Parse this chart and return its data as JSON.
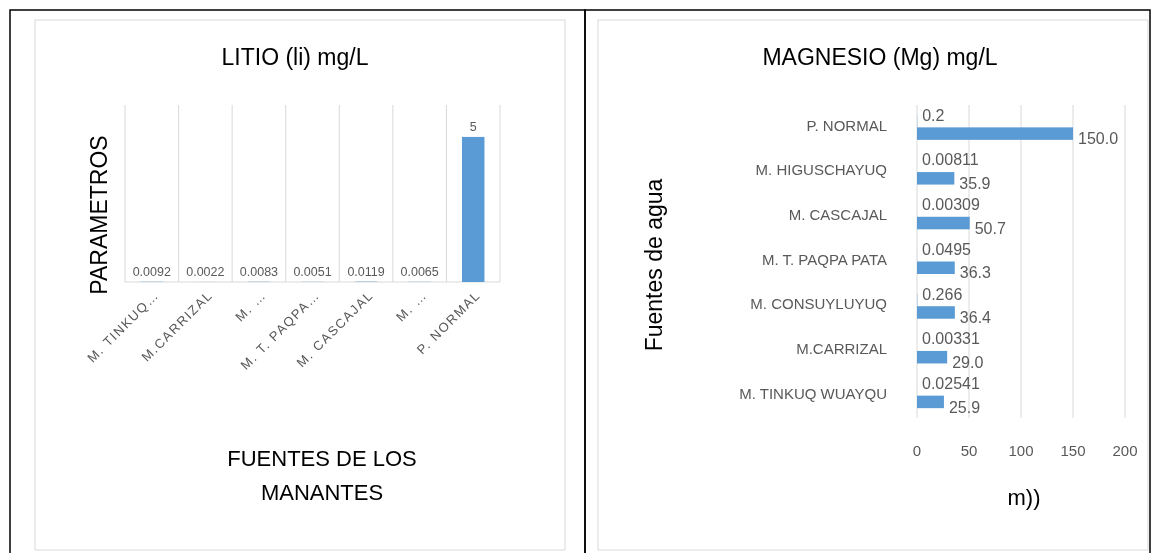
{
  "chart_data": [
    {
      "type": "bar",
      "title": "LITIO (li) mg/L",
      "xlabel": "FUENTES DE LOS MANANTES",
      "ylabel": "PARAMETROS",
      "categories": [
        "M. TINKUQ…",
        "M.CARRIZAL",
        "M. …",
        "M. T. PAQPA…",
        "M. CASCAJAL",
        "M. …",
        "P. NORMAL"
      ],
      "series": [
        {
          "color": "#5b9bd5",
          "values": [
            0.0092,
            0.0022,
            0.0083,
            0.0051,
            0.0119,
            0.0065,
            5
          ]
        }
      ],
      "data_labels": true,
      "grid": "x",
      "tick_labels": "x"
    },
    {
      "type": "bar",
      "orientation": "horizontal",
      "title": "MAGNESIO (Mg) mg/L",
      "xlabel": "m))",
      "ylabel": "Fuentes de agua",
      "categories": [
        "P. NORMAL",
        "M. HIGUSCHAYUQ",
        "M. CASCAJAL",
        "M. T. PAQPA PATA",
        "M. CONSUYLUYUQ",
        "M.CARRIZAL",
        "M. TINKUQ WUAYQU"
      ],
      "series": [
        {
          "color": "#5b9bd5",
          "values": [
            0.2,
            0.00811,
            0.00309,
            0.0495,
            0.266,
            0.00331,
            0.02541
          ],
          "value_labels": [
            "0.2",
            "0.00811",
            "0.00309",
            "0.0495",
            "0.266",
            "0.00331",
            "0.02541"
          ]
        },
        {
          "color": "#5b9bd5",
          "values": [
            150,
            35.9,
            50.7,
            36.3,
            36.4,
            29,
            25.9
          ],
          "value_labels": [
            "150.0",
            "35.9",
            "50.7",
            "36.3",
            "36.4",
            "29.0",
            "25.9"
          ]
        }
      ],
      "xlim": [
        0,
        200
      ],
      "xticks": [
        0,
        50,
        100,
        150,
        200
      ],
      "grid": "x"
    }
  ]
}
